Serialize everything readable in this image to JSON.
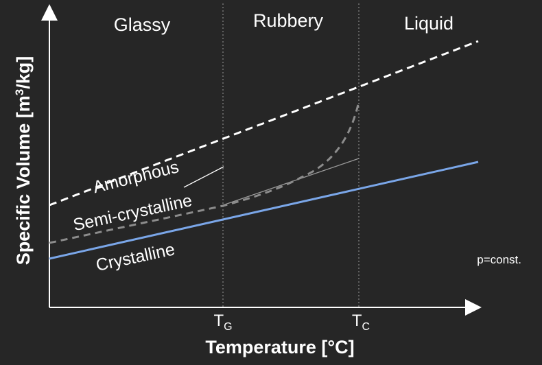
{
  "regions": {
    "glassy": "Glassy",
    "rubbery": "Rubbery",
    "liquid": "Liquid"
  },
  "curves": {
    "amorphous": "Amorphous",
    "semi_crystalline": "Semi-crystalline",
    "crystalline": "Crystalline"
  },
  "ticks": {
    "tg": {
      "main": "T",
      "sub": "G"
    },
    "tc": {
      "main": "T",
      "sub": "C"
    }
  },
  "axes": {
    "x_label": "Temperature [°C]",
    "y_label_prefix": "Specific Volume [m",
    "y_label_sup": "3",
    "y_label_suffix": "/kg]"
  },
  "note": "p=const.",
  "colors": {
    "background": "#262626",
    "crystalline_line": "#7aa6e8",
    "semi_crystalline_line": "#8c8c8c",
    "amorphous_line": "#ffffff"
  }
}
